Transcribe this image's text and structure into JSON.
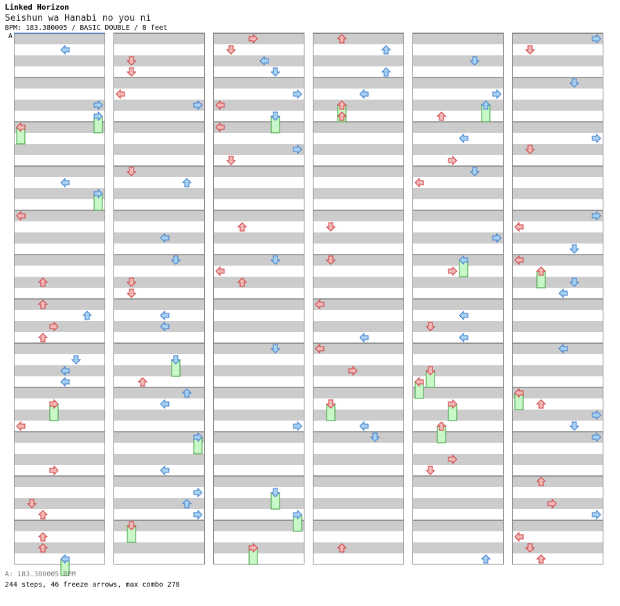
{
  "header": {
    "artist": "Linked Horizon",
    "title": "Seishun wa Hanabi no you ni",
    "bpm_line": "BPM: 183.380005 / BASIC DOUBLE / 8 feet",
    "marker": "A"
  },
  "footer": {
    "bpm_note": "A: 183.380005 BPM",
    "summary": "244 steps, 46 freeze arrows, max combo 278"
  },
  "colors": {
    "shade": "#cccccc",
    "border": "#888888",
    "left_pad_arrow": "#f2b8b8",
    "right_pad_arrow": "#a8d0f0",
    "freeze": "#c8f8c8"
  }
}
